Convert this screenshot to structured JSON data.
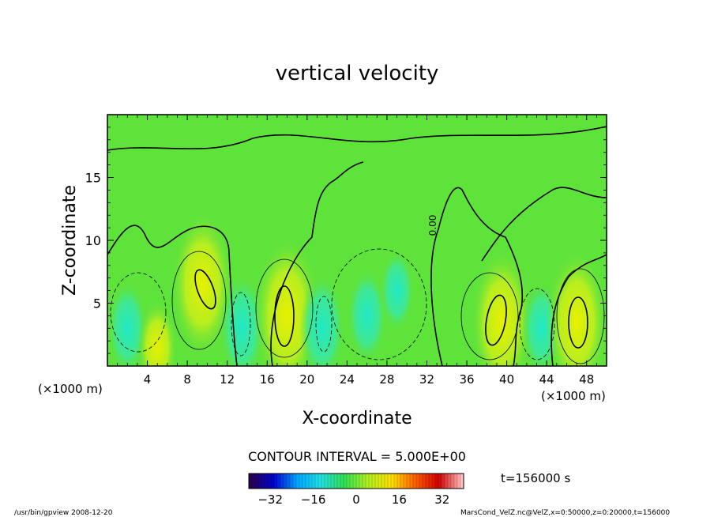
{
  "chart_data": {
    "type": "heatmap",
    "title": "vertical velocity",
    "xlabel": "X-coordinate",
    "ylabel": "Z-coordinate",
    "x_unit_left": "(×1000 m)",
    "x_unit_right": "(×1000 m)",
    "xlim": [
      0,
      50
    ],
    "ylim": [
      0,
      20
    ],
    "xticks": [
      4,
      8,
      12,
      16,
      20,
      24,
      28,
      32,
      36,
      40,
      44,
      48
    ],
    "yticks": [
      5,
      10,
      15
    ],
    "contour_interval_text": "CONTOUR INTERVAL = 5.000E+00",
    "contour_label": "0.00",
    "time_text": "t=156000 s",
    "colorbar": {
      "range": [
        -40,
        40
      ],
      "ticks": [
        -32,
        -16,
        0,
        16,
        32
      ],
      "colormap": [
        "#2a0050",
        "#0000d0",
        "#00a8ff",
        "#20e0e0",
        "#30e050",
        "#b0f020",
        "#ffe000",
        "#ff6000",
        "#d00000",
        "#ffc0c0"
      ]
    },
    "cells": [
      {
        "x": 2,
        "z": 3,
        "w": -8
      },
      {
        "x": 5,
        "z": 1.5,
        "w": 8
      },
      {
        "x": 9.5,
        "z": 6.5,
        "w": 16
      },
      {
        "x": 13.5,
        "z": 3,
        "w": -10
      },
      {
        "x": 18,
        "z": 4,
        "w": 18
      },
      {
        "x": 21.5,
        "z": 3,
        "w": -10
      },
      {
        "x": 26,
        "z": 4,
        "w": -8
      },
      {
        "x": 29,
        "z": 6,
        "w": -6
      },
      {
        "x": 39.5,
        "z": 3.5,
        "w": 16
      },
      {
        "x": 43.5,
        "z": 3,
        "w": -8
      },
      {
        "x": 47,
        "z": 3.5,
        "w": 16
      }
    ]
  },
  "footer": {
    "left": "/usr/bin/gpview  2008-12-20",
    "right": "MarsCond_VelZ.nc@VelZ,x=0:50000,z=0:20000,t=156000"
  }
}
